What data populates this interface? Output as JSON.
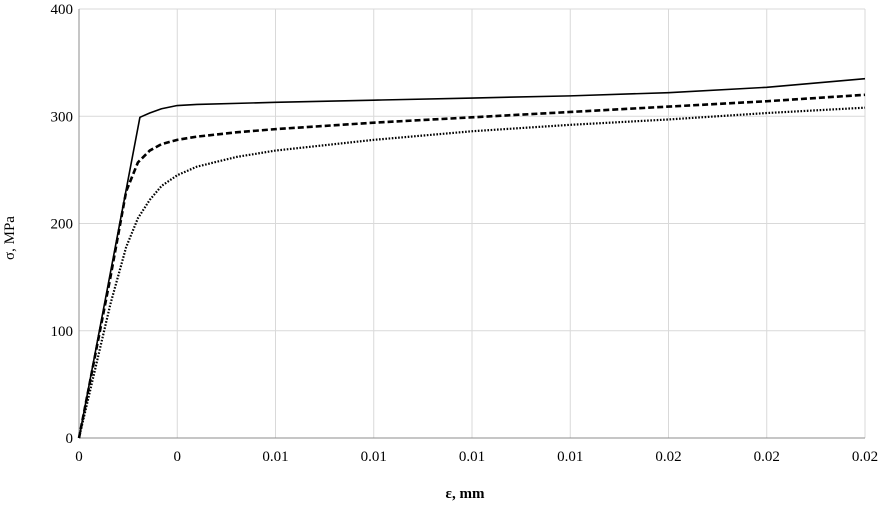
{
  "chart_data": {
    "type": "line",
    "title": "",
    "xlabel": "ε, mm",
    "ylabel": "σ, MPa",
    "xlim": [
      0,
      0.02
    ],
    "ylim": [
      0,
      400
    ],
    "x_tick_values": [
      0,
      0.0025,
      0.005,
      0.0075,
      0.01,
      0.0125,
      0.015,
      0.0175,
      0.02
    ],
    "x_tick_labels": [
      "0",
      "0",
      "0.01",
      "0.01",
      "0.01",
      "0.01",
      "0.02",
      "0.02",
      "0.02"
    ],
    "y_tick_values": [
      0,
      100,
      200,
      300,
      400
    ],
    "y_tick_labels": [
      "0",
      "100",
      "200",
      "300",
      "400"
    ],
    "grid": true,
    "legend": "none",
    "series": [
      {
        "style": "solid",
        "color": "#000000",
        "x": [
          0,
          0.00155,
          0.0018,
          0.0021,
          0.0025,
          0.003,
          0.005,
          0.0075,
          0.01,
          0.0125,
          0.015,
          0.0175,
          0.02
        ],
        "y": [
          0,
          299,
          303,
          307,
          310,
          311,
          313,
          315,
          317,
          319,
          322,
          327,
          335
        ]
      },
      {
        "style": "dashed",
        "color": "#000000",
        "x": [
          0,
          0.0008,
          0.0012,
          0.0015,
          0.0018,
          0.0021,
          0.0025,
          0.003,
          0.004,
          0.005,
          0.0075,
          0.01,
          0.0125,
          0.015,
          0.0175,
          0.02
        ],
        "y": [
          0,
          150,
          230,
          257,
          268,
          274,
          278,
          281,
          285,
          288,
          294,
          299,
          304,
          309,
          314,
          320
        ]
      },
      {
        "style": "dotted",
        "color": "#000000",
        "x": [
          0,
          0.0008,
          0.0012,
          0.0015,
          0.0018,
          0.0021,
          0.0025,
          0.003,
          0.004,
          0.005,
          0.0075,
          0.01,
          0.0125,
          0.015,
          0.0175,
          0.02
        ],
        "y": [
          0,
          125,
          178,
          205,
          222,
          235,
          245,
          253,
          262,
          268,
          278,
          286,
          292,
          297,
          303,
          308
        ]
      }
    ]
  }
}
